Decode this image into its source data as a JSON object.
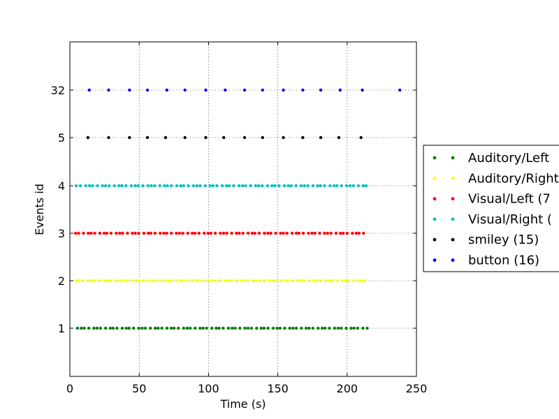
{
  "chart_data": {
    "type": "scatter",
    "title": "",
    "xlabel": "Time (s)",
    "ylabel": "Events id",
    "xlim": [
      0,
      250
    ],
    "x_ticks": [
      "0",
      "50",
      "100",
      "150",
      "200",
      "250"
    ],
    "y_ticks": [
      "1",
      "2",
      "3",
      "4",
      "5",
      "32"
    ],
    "grid": true,
    "grid_style": "dotted",
    "legend_position": "right-outside",
    "series": [
      {
        "name": "Auditory/Left",
        "legend_label": "Auditory/Left",
        "color": "#008000",
        "row": 1,
        "tick": "1",
        "x_range": [
          5,
          214
        ],
        "count": 72
      },
      {
        "name": "Auditory/Right",
        "legend_label": "Auditory/Right",
        "color": "#ffff00",
        "row": 2,
        "tick": "2",
        "x_range": [
          4,
          213
        ],
        "count": 73
      },
      {
        "name": "Visual/Left",
        "legend_label": "Visual/Left (7",
        "color": "#ff0000",
        "row": 3,
        "tick": "3",
        "x_range": [
          4,
          212
        ],
        "count": 73
      },
      {
        "name": "Visual/Right",
        "legend_label": "Visual/Right (",
        "color": "#00bfbf",
        "row": 4,
        "tick": "4",
        "x_range": [
          5,
          214
        ],
        "count": 71
      },
      {
        "name": "smiley",
        "legend_label": "smiley (15)",
        "color": "#000000",
        "row": 5,
        "tick": "5",
        "x": [
          13,
          28,
          43,
          56,
          69,
          83,
          98,
          111,
          126,
          139,
          154,
          168,
          181,
          194,
          210
        ]
      },
      {
        "name": "button",
        "legend_label": "button (16)",
        "color": "#0000ff",
        "row": 6,
        "tick": "32",
        "x": [
          14,
          28,
          43,
          56,
          70,
          83,
          98,
          112,
          126,
          139,
          154,
          168,
          181,
          195,
          211,
          238
        ]
      }
    ]
  }
}
